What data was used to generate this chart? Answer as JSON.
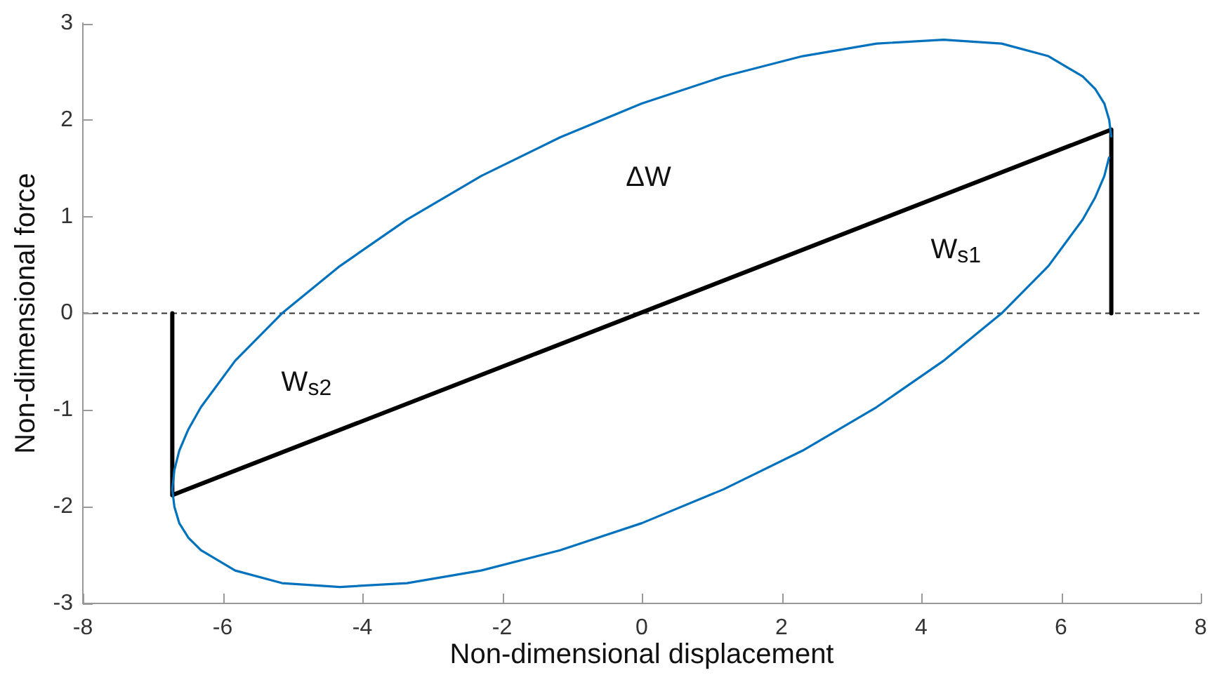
{
  "chart_data": {
    "type": "line",
    "xlabel": "Non-dimensional displacement",
    "ylabel": "Non-dimensional force",
    "xlim": [
      -8,
      8
    ],
    "xticks": [
      -8,
      -6,
      -4,
      -2,
      0,
      2,
      4,
      6,
      8
    ],
    "ylim": [
      -3,
      3
    ],
    "yticks": [
      -3,
      -2,
      -1,
      0,
      1,
      2,
      3
    ],
    "grid": false,
    "legend": false,
    "marker": "none",
    "series": [
      {
        "color": "#0072bd",
        "x": [
          6.72,
          6.69,
          6.62,
          6.49,
          6.31,
          5.82,
          5.15,
          4.32,
          3.36,
          2.3,
          1.17,
          0,
          -1.17,
          -2.3,
          -3.36,
          -4.32,
          -5.15,
          -5.82,
          -6.31,
          -6.49,
          -6.62,
          -6.69,
          -6.72,
          -6.69,
          -6.62,
          -6.49,
          -6.31,
          -5.82,
          -5.15,
          -4.32,
          -3.36,
          -2.3,
          -1.17,
          0,
          1.17,
          2.3,
          3.36,
          4.32,
          5.15,
          5.82,
          6.31,
          6.49,
          6.62,
          6.69
        ],
        "values": [
          1.82,
          2.0,
          2.17,
          2.32,
          2.45,
          2.66,
          2.79,
          2.83,
          2.79,
          2.66,
          2.45,
          2.17,
          1.82,
          1.42,
          0.97,
          0.49,
          0,
          -0.49,
          -0.97,
          -1.2,
          -1.42,
          -1.62,
          -1.82,
          -2.0,
          -2.17,
          -2.32,
          -2.45,
          -2.66,
          -2.79,
          -2.83,
          -2.79,
          -2.66,
          -2.45,
          -2.17,
          -1.82,
          -1.42,
          -0.97,
          -0.49,
          0,
          0.49,
          0.97,
          1.2,
          1.42,
          1.62
        ]
      },
      {
        "color": "#000000",
        "x": [
          -6.72,
          -6.72,
          6.72,
          6.72
        ],
        "values": [
          0,
          -1.88,
          1.9,
          0
        ]
      }
    ],
    "ref_lines": [
      {
        "axis": "y",
        "value": 0,
        "color": "#333333",
        "line_style": "dashed"
      }
    ],
    "annotations": [
      "ΔW",
      "W$_{s1}$",
      "W$_{s2}$"
    ]
  }
}
